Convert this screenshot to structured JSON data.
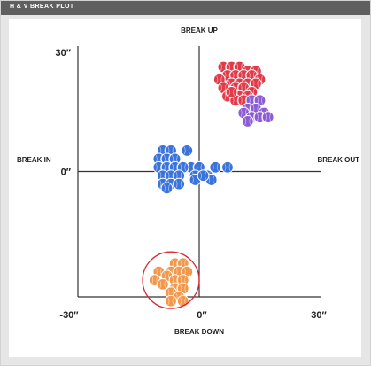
{
  "header": {
    "title": "H & V BREAK PLOT"
  },
  "chart_data": {
    "type": "scatter",
    "title": "",
    "axes": {
      "x_range": [
        -30,
        30
      ],
      "y_range": [
        -30,
        30
      ],
      "x_tick_labels": [
        "-30″",
        "0″",
        "30″"
      ],
      "y_tick_labels": [
        "30″",
        "0″"
      ],
      "top_label": "BREAK UP",
      "bottom_label": "BREAK DOWN",
      "left_label": "BREAK IN",
      "right_label": "BREAK OUT",
      "grid": false
    },
    "series": [
      {
        "color": "#e23a48",
        "points": [
          [
            6,
            25
          ],
          [
            8,
            25
          ],
          [
            10,
            25
          ],
          [
            12,
            24
          ],
          [
            14,
            24
          ],
          [
            7,
            23
          ],
          [
            9,
            23
          ],
          [
            11,
            23
          ],
          [
            13,
            23
          ],
          [
            15,
            22
          ],
          [
            5,
            22
          ],
          [
            8,
            21
          ],
          [
            10,
            21
          ],
          [
            12,
            21
          ],
          [
            14,
            21
          ],
          [
            6,
            20
          ],
          [
            9,
            20
          ],
          [
            11,
            20
          ],
          [
            13,
            19
          ],
          [
            7,
            18
          ],
          [
            10,
            18
          ],
          [
            12,
            18
          ],
          [
            9,
            17
          ],
          [
            11,
            17
          ],
          [
            8,
            19
          ]
        ]
      },
      {
        "color": "#8b5cd6",
        "points": [
          [
            13,
            17
          ],
          [
            15,
            17
          ],
          [
            12,
            15
          ],
          [
            14,
            15
          ],
          [
            16,
            14
          ],
          [
            11,
            14
          ],
          [
            13,
            13
          ],
          [
            15,
            13
          ],
          [
            12,
            12
          ],
          [
            17,
            13
          ]
        ]
      },
      {
        "color": "#3b73dc",
        "points": [
          [
            -9,
            5
          ],
          [
            -7,
            5
          ],
          [
            -3,
            5
          ],
          [
            -10,
            3
          ],
          [
            -8,
            3
          ],
          [
            -6,
            3
          ],
          [
            -2,
            1
          ],
          [
            -10,
            1
          ],
          [
            -8,
            1
          ],
          [
            -6,
            1
          ],
          [
            -4,
            1
          ],
          [
            0,
            1
          ],
          [
            4,
            1
          ],
          [
            7,
            1
          ],
          [
            -9,
            -1
          ],
          [
            -7,
            -1
          ],
          [
            -5,
            -1
          ],
          [
            -1,
            -1
          ],
          [
            2,
            -1
          ],
          [
            -9,
            -3
          ],
          [
            -7,
            -3
          ],
          [
            -5,
            -3
          ],
          [
            -1,
            -2
          ],
          [
            3,
            -2
          ],
          [
            -8,
            -4
          ],
          [
            1,
            -1
          ]
        ]
      },
      {
        "color": "#f3974a",
        "points": [
          [
            -6,
            -22
          ],
          [
            -4,
            -22
          ],
          [
            -7,
            -24
          ],
          [
            -5,
            -24
          ],
          [
            -10,
            -24
          ],
          [
            -3,
            -24
          ],
          [
            -8,
            -25
          ],
          [
            -11,
            -26
          ],
          [
            -6,
            -26
          ],
          [
            -4,
            -26
          ],
          [
            -9,
            -27
          ],
          [
            -6,
            -28
          ],
          [
            -4,
            -28
          ],
          [
            -7,
            -29
          ],
          [
            -5,
            -30
          ],
          [
            -7,
            -31
          ],
          [
            -4,
            -31
          ]
        ]
      }
    ],
    "annotation": {
      "shape": "circle",
      "color": "#d92631",
      "center": [
        -7,
        -26
      ],
      "radius_data_units": 7
    }
  }
}
